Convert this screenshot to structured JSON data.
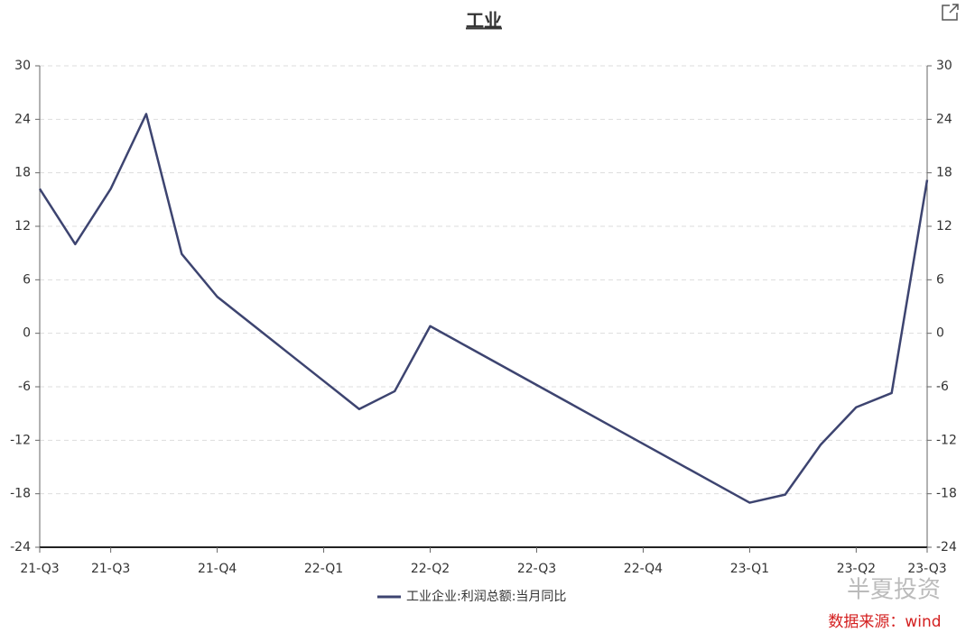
{
  "chart_data": {
    "type": "line",
    "title": "工业",
    "categories": [
      "21-Q3",
      null,
      "21-Q3",
      null,
      null,
      "21-Q4",
      null,
      null,
      "22-Q1",
      null,
      null,
      "22-Q2",
      null,
      null,
      "22-Q3",
      null,
      null,
      "22-Q4",
      null,
      null,
      "23-Q1",
      null,
      null,
      "23-Q2",
      null,
      "23-Q3"
    ],
    "series": [
      {
        "name": "工业企业:利润总额:当月同比",
        "color": "#3d4470",
        "values": [
          16.2,
          10.0,
          16.2,
          24.6,
          8.9,
          4.1,
          0.95,
          -2.2,
          -5.35,
          -8.5,
          -6.5,
          0.8,
          -1.4,
          -3.6,
          -5.8,
          -8.0,
          -10.2,
          -12.4,
          -14.6,
          -16.8,
          -19.0,
          -18.1,
          -12.5,
          -8.3,
          -6.7,
          17.2
        ]
      }
    ],
    "ylim": [
      -24,
      30
    ],
    "yticks": [
      -24,
      -18,
      -12,
      -6,
      0,
      6,
      12,
      18,
      24,
      30
    ],
    "y2lim": [
      -24,
      30
    ],
    "y2ticks": [
      -24,
      -18,
      -12,
      -6,
      0,
      6,
      12,
      18,
      24,
      30
    ],
    "grid": true,
    "legend": "bottom",
    "source": "数据来源：wind",
    "watermark": "半夏投资"
  }
}
